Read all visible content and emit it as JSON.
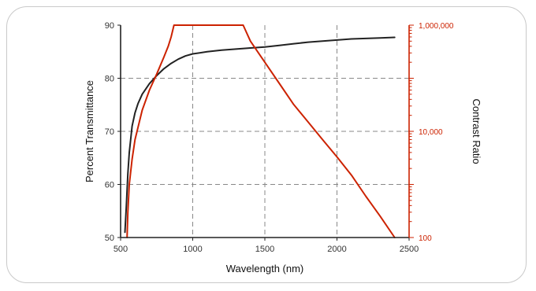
{
  "chart_data": {
    "type": "line",
    "x_label": "Wavelength (nm)",
    "y_label_left": "Percent Transmittance",
    "y_label_right": "Contrast Ratio",
    "x_range": [
      500,
      2500
    ],
    "x_ticks": [
      "500",
      "1000",
      "1500",
      "2000",
      "2500"
    ],
    "y_left_range": [
      50,
      90
    ],
    "y_left_ticks": [
      "50",
      "60",
      "70",
      "80",
      "90"
    ],
    "y_right_range": [
      100,
      1000000
    ],
    "y_right_scale": "log",
    "y_right_ticks": [
      "100",
      "10,000",
      "1,000,000"
    ],
    "grid": true,
    "colors": {
      "transmittance": "#222222",
      "contrast": "#cc2200",
      "grid": "#888888"
    },
    "series": [
      {
        "axis": "left",
        "x": [
          530,
          540,
          550,
          560,
          580,
          600,
          620,
          650,
          700,
          750,
          800,
          850,
          900,
          950,
          1000,
          1100,
          1200,
          1300,
          1400,
          1500,
          1600,
          1700,
          1800,
          1900,
          2000,
          2100,
          2200,
          2300,
          2400
        ],
        "y": [
          51,
          56,
          62,
          66,
          71,
          73.5,
          75.2,
          77,
          79,
          80.5,
          81.8,
          82.8,
          83.6,
          84.2,
          84.6,
          85.0,
          85.3,
          85.5,
          85.7,
          85.9,
          86.2,
          86.5,
          86.8,
          87.0,
          87.2,
          87.4,
          87.5,
          87.6,
          87.7
        ]
      },
      {
        "axis": "right",
        "x": [
          545,
          550,
          560,
          580,
          600,
          650,
          700,
          750,
          800,
          830,
          850,
          870,
          1350,
          1400,
          1500,
          1600,
          1700,
          1800,
          1900,
          2000,
          2100,
          2200,
          2300,
          2400
        ],
        "y": [
          100,
          300,
          1000,
          3000,
          7000,
          25000,
          60000,
          120000,
          250000,
          400000,
          600000,
          1000000,
          1000000,
          500000,
          200000,
          80000,
          32000,
          15000,
          7000,
          3300,
          1500,
          600,
          250,
          100
        ]
      }
    ]
  }
}
